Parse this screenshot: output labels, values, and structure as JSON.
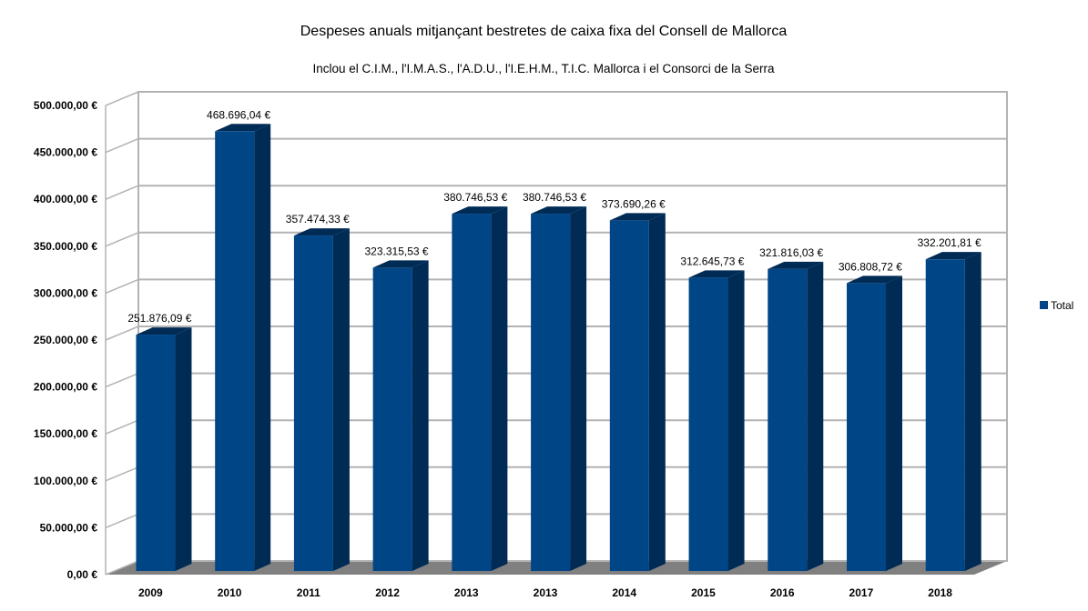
{
  "chart_data": {
    "type": "bar",
    "style": "3d-column",
    "title": "Despeses anuals mitjançant bestretes de caixa fixa del Consell de Mallorca",
    "subtitle": "Inclou el C.I.M., l'I.M.A.S., l'A.D.U., l'I.E.H.M., T.I.C. Mallorca i el Consorci de la Serra",
    "xlabel": "",
    "ylabel": "",
    "categories": [
      "2009",
      "2010",
      "2011",
      "2012",
      "2013",
      "2013",
      "2014",
      "2015",
      "2016",
      "2017",
      "2018"
    ],
    "series": [
      {
        "name": "Total",
        "color": "#004586",
        "side_color": "#002b55",
        "values": [
          251876.09,
          468696.04,
          357474.33,
          323315.53,
          380746.53,
          380746.53,
          373690.26,
          312645.73,
          321816.03,
          306808.72,
          332201.81
        ],
        "labels": [
          "251.876,09 €",
          "468.696,04 €",
          "357.474,33 €",
          "323.315,53 €",
          "380.746,53 €",
          "380.746,53 €",
          "373.690,26 €",
          "312.645,73 €",
          "321.816,03 €",
          "306.808,72 €",
          "332.201,81 €"
        ]
      }
    ],
    "ylim": [
      0,
      500000
    ],
    "yticks": [
      0,
      50000,
      100000,
      150000,
      200000,
      250000,
      300000,
      350000,
      400000,
      450000,
      500000
    ],
    "ytick_labels": [
      "0,00 €",
      "50.000,00 €",
      "100.000,00 €",
      "150.000,00 €",
      "200.000,00 €",
      "250.000,00 €",
      "300.000,00 €",
      "350.000,00 €",
      "400.000,00 €",
      "450.000,00 €",
      "500.000,00 €"
    ],
    "grid": true,
    "legend": {
      "position": "right",
      "entries": [
        "Total"
      ]
    },
    "colors": {
      "wall_line": "#b3b3b3",
      "floor": "#808080",
      "bar_front": "#004586",
      "bar_side": "#002b55"
    }
  }
}
